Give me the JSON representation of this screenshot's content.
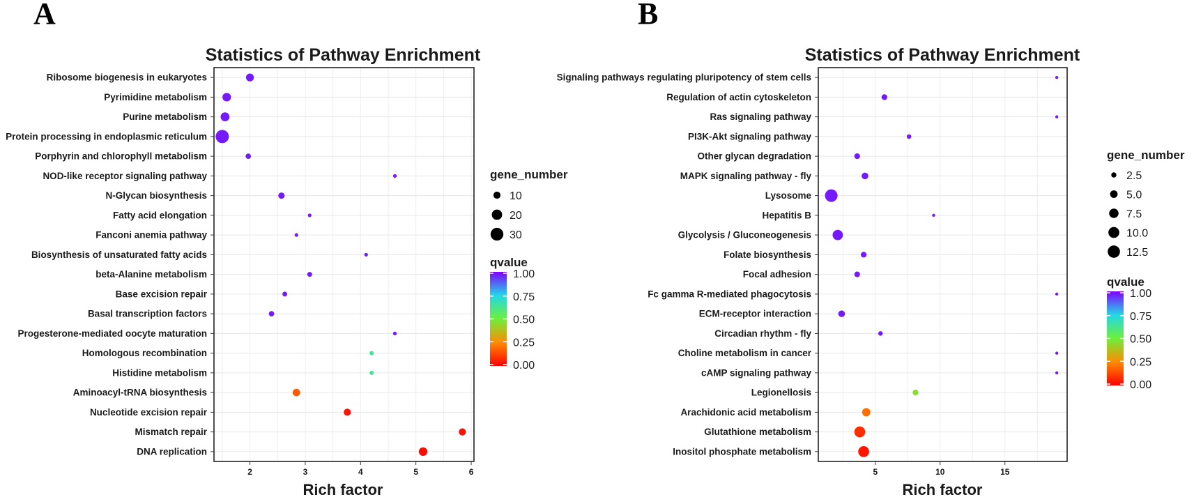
{
  "panels": [
    "A",
    "B"
  ],
  "chart_data": [
    {
      "type": "scatter",
      "panel": "A",
      "title": "Statistics of Pathway Enrichment",
      "xlabel": "Rich factor",
      "xlim": [
        1.35,
        6.05
      ],
      "xticks": [
        2,
        3,
        4,
        5,
        6
      ],
      "categories": [
        "Ribosome biogenesis in eukaryotes",
        "Pyrimidine metabolism",
        "Purine metabolism",
        "Protein processing in endoplasmic reticulum",
        "Porphyrin and chlorophyll metabolism",
        "NOD-like receptor signaling pathway",
        "N-Glycan biosynthesis",
        "Fatty acid elongation",
        "Fanconi anemia pathway",
        "Biosynthesis of unsaturated fatty acids",
        "beta-Alanine metabolism",
        "Base excision repair",
        "Basal transcription factors",
        "Progesterone-mediated oocyte maturation",
        "Homologous recombination",
        "Histidine metabolism",
        "Aminoacyl-tRNA biosynthesis",
        "Nucleotide excision repair",
        "Mismatch repair",
        "DNA replication"
      ],
      "rich_factor": [
        2.0,
        1.58,
        1.55,
        1.5,
        1.97,
        4.62,
        2.57,
        3.08,
        2.84,
        4.1,
        3.08,
        2.63,
        2.39,
        4.62,
        4.2,
        4.2,
        2.84,
        3.76,
        5.84,
        5.13
      ],
      "gene_number": [
        12,
        14,
        15,
        32,
        6,
        3,
        8,
        3,
        3,
        3,
        5,
        5,
        6,
        3,
        4,
        4,
        11,
        10,
        10,
        14
      ],
      "qvalue": [
        0.97,
        0.97,
        0.97,
        0.97,
        0.97,
        0.97,
        0.97,
        0.97,
        0.97,
        0.97,
        0.97,
        0.97,
        0.97,
        0.97,
        0.63,
        0.63,
        0.16,
        0.04,
        0.03,
        0.02
      ],
      "legend": {
        "size_title": "gene_number",
        "size_values": [
          10,
          20,
          30
        ],
        "size_labels": [
          "10",
          "20",
          "30"
        ],
        "color_title": "qvalue",
        "color_labels": [
          "1.00",
          "0.75",
          "0.50",
          "0.25",
          "0.00"
        ]
      }
    },
    {
      "type": "scatter",
      "panel": "B",
      "title": "Statistics of Pathway Enrichment",
      "xlabel": "Rich factor",
      "xlim": [
        0.6,
        19.8
      ],
      "xticks": [
        5,
        10,
        15
      ],
      "categories": [
        "Signaling pathways regulating pluripotency of stem cells",
        "Regulation of actin cytoskeleton",
        "Ras signaling pathway",
        "PI3K-Akt signaling pathway",
        "Other glycan degradation",
        "MAPK signaling pathway - fly",
        "Lysosome",
        "Hepatitis B",
        "Glycolysis / Gluconeogenesis",
        "Folate biosynthesis",
        "Focal adhesion",
        "Fc gamma R-mediated phagocytosis",
        "ECM-receptor interaction",
        "Circadian rhythm - fly",
        "Choline metabolism in cancer",
        "cAMP signaling pathway",
        "Legionellosis",
        "Arachidonic acid metabolism",
        "Glutathione metabolism",
        "Inositol phosphate metabolism"
      ],
      "rich_factor": [
        19.0,
        5.7,
        19.0,
        7.6,
        3.6,
        4.2,
        1.6,
        9.5,
        2.1,
        4.1,
        3.6,
        19.0,
        2.4,
        5.4,
        19.0,
        19.0,
        8.1,
        4.3,
        3.8,
        4.1
      ],
      "gene_number": [
        1,
        3,
        1,
        2,
        3,
        4,
        13,
        1,
        9,
        3,
        3,
        1,
        4,
        2,
        1,
        1,
        3,
        6,
        10,
        10
      ],
      "qvalue": [
        0.97,
        0.97,
        0.97,
        0.97,
        0.97,
        0.97,
        0.97,
        0.97,
        0.97,
        0.97,
        0.97,
        0.97,
        0.97,
        0.97,
        0.97,
        0.97,
        0.45,
        0.2,
        0.08,
        0.04
      ],
      "legend": {
        "size_title": "gene_number",
        "size_values": [
          2.5,
          5.0,
          7.5,
          10.0,
          12.5
        ],
        "size_labels": [
          "2.5",
          "5.0",
          "7.5",
          "10.0",
          "12.5"
        ],
        "color_title": "qvalue",
        "color_labels": [
          "1.00",
          "0.75",
          "0.50",
          "0.25",
          "0.00"
        ]
      }
    }
  ]
}
